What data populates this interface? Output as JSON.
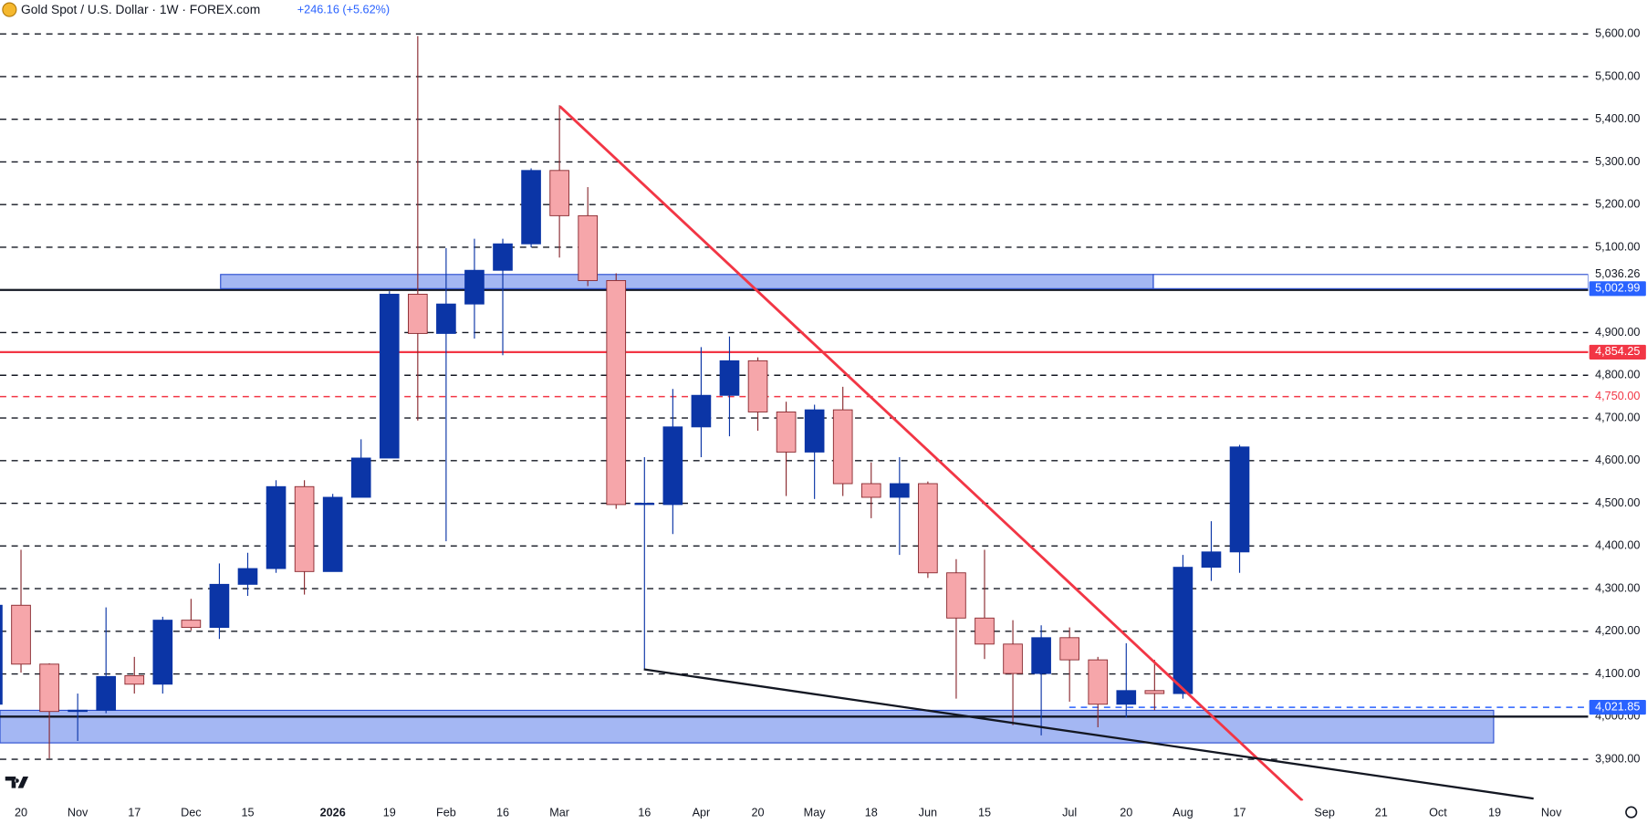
{
  "chart_data": {
    "type": "candlestick",
    "title": "Gold Spot / U.S. Dollar · 1W · FOREX.com",
    "change": "+246.16 (+5.62%)",
    "categories": [
      null,
      "20",
      null,
      "Nov",
      null,
      "17",
      null,
      "Dec",
      null,
      "15",
      null,
      null,
      "2026",
      null,
      "19",
      null,
      "Feb",
      null,
      "16",
      null,
      "Mar",
      null,
      null,
      "16",
      null,
      "Apr",
      null,
      "20",
      null,
      "May",
      null,
      "18",
      null,
      "Jun",
      null,
      "15",
      null,
      null,
      "Jul",
      null,
      "20",
      null,
      "Aug",
      null,
      "17",
      null,
      null,
      "Sep",
      null,
      "21",
      null,
      "Oct",
      null,
      "19",
      null,
      "Nov"
    ],
    "open": [
      4029,
      4261,
      4123,
      4012,
      4015,
      4096,
      4076,
      4226,
      4209,
      4310,
      4347,
      4539,
      4340,
      4514,
      4606,
      4990,
      4898,
      4967,
      5046,
      5108,
      5280,
      5174,
      5022,
      4497,
      4497,
      4679,
      4753,
      4834,
      4714,
      4620,
      4719,
      4546,
      4514,
      4546,
      4337,
      4231,
      4170,
      4101,
      4185,
      4133,
      4029,
      4061,
      4054,
      4350,
      4386,
      null,
      null,
      null,
      null,
      null,
      null,
      null,
      null,
      null,
      null,
      null
    ],
    "high": [
      4270,
      4391,
      4125,
      4054,
      4256,
      4140,
      4234,
      4276,
      4359,
      4384,
      4554,
      4554,
      4522,
      4650,
      4997,
      5595,
      5098,
      5120,
      5120,
      5285,
      5433,
      5241,
      5039,
      4608,
      4768,
      4866,
      4891,
      4842,
      4738,
      4731,
      4773,
      4596,
      4608,
      4551,
      4369,
      4391,
      4226,
      4214,
      4209,
      4140,
      4172,
      4133,
      4379,
      4458,
      4637,
      null,
      null,
      null,
      null,
      null,
      null,
      null,
      null,
      null,
      null,
      null
    ],
    "low": [
      4020,
      4103,
      3902,
      3943,
      4008,
      4054,
      4054,
      4202,
      4182,
      4283,
      4337,
      4286,
      4340,
      4514,
      4606,
      4694,
      4411,
      4886,
      4847,
      5100,
      5076,
      5009,
      4487,
      4111,
      4428,
      4608,
      4657,
      4670,
      4517,
      4510,
      4517,
      4465,
      4379,
      4325,
      4042,
      4135,
      3980,
      3956,
      4035,
      3975,
      3998,
      4015,
      4042,
      4318,
      4337,
      null,
      null,
      null,
      null,
      null,
      null,
      null,
      null,
      null,
      null,
      null
    ],
    "close": [
      4261,
      4123,
      4012,
      4015,
      4094,
      4076,
      4226,
      4209,
      4310,
      4347,
      4539,
      4340,
      4514,
      4606,
      4990,
      4898,
      4967,
      5046,
      5108,
      5280,
      5174,
      5022,
      4497,
      4500,
      4679,
      4753,
      4834,
      4714,
      4620,
      4719,
      4546,
      4514,
      4546,
      4337,
      4231,
      4170,
      4101,
      4185,
      4133,
      4029,
      4061,
      4054,
      4350,
      4386,
      4632,
      null,
      null,
      null,
      null,
      null,
      null,
      null,
      null,
      null,
      null,
      null
    ],
    "up_color": "#0b35a6",
    "down_color": "#f6a6aa",
    "down_border": "#8a2a30",
    "ylim": [
      3803,
      5679
    ],
    "yticks": [
      {
        "value": 5600,
        "label": "5,600.00"
      },
      {
        "value": 5500,
        "label": "5,500.00"
      },
      {
        "value": 5400,
        "label": "5,400.00"
      },
      {
        "value": 5300,
        "label": "5,300.00"
      },
      {
        "value": 5200,
        "label": "5,200.00"
      },
      {
        "value": 5100,
        "label": "5,100.00"
      },
      {
        "value": 5000,
        "label": "5,000.00",
        "line": "solid"
      },
      {
        "value": 4900,
        "label": "4,900.00"
      },
      {
        "value": 4800,
        "label": "4,800.00"
      },
      {
        "value": 4700,
        "label": "4,700.00"
      },
      {
        "value": 4600,
        "label": "4,600.00"
      },
      {
        "value": 4500,
        "label": "4,500.00"
      },
      {
        "value": 4400,
        "label": "4,400.00"
      },
      {
        "value": 4300,
        "label": "4,300.00"
      },
      {
        "value": 4200,
        "label": "4,200.00"
      },
      {
        "value": 4100,
        "label": "4,100.00"
      },
      {
        "value": 4000,
        "label": "4,000.00",
        "line": "solid"
      },
      {
        "value": 3900,
        "label": "3,900.00"
      }
    ],
    "markers": [
      {
        "value": 5036.26,
        "label": "5,036.26",
        "bg": "#ffffff",
        "fg": "#131722",
        "line": "none"
      },
      {
        "value": 5002.99,
        "label": "5,002.99",
        "bg": "#2962ff",
        "fg": "#ffffff",
        "line": "none"
      },
      {
        "value": 4854.25,
        "label": "4,854.25",
        "bg": "#f23645",
        "fg": "#ffffff",
        "line": "solid",
        "color": "#f23645"
      },
      {
        "value": 4750,
        "label": "4,750.00",
        "bg": "#ffffff",
        "fg": "#f23645",
        "line": "dashed",
        "color": "#f23645"
      },
      {
        "value": 4021.85,
        "label": "4,021.85",
        "bg": "#2962ff",
        "fg": "#ffffff",
        "line": "dashed",
        "color": "#2962ff"
      }
    ],
    "grid": "dashed"
  }
}
